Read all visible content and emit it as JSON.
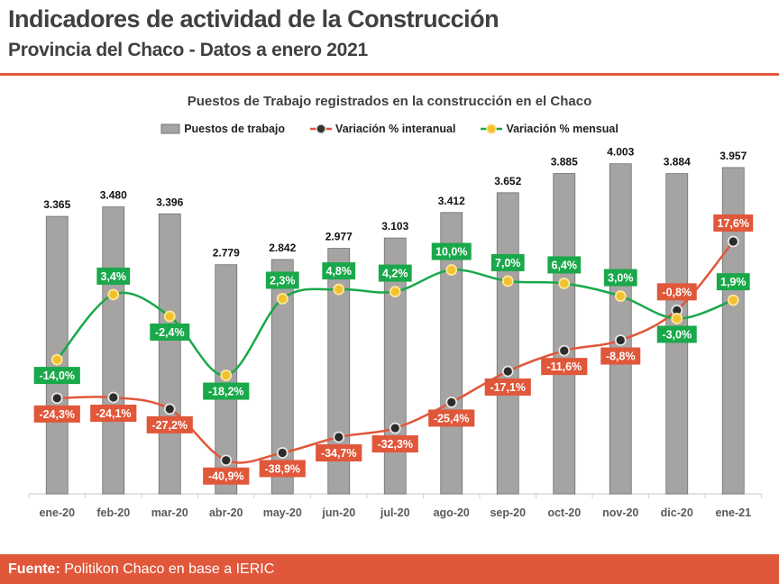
{
  "header": {
    "title": "Indicadores de actividad de la Construcción",
    "subtitle": "Provincia del Chaco - Datos a enero 2021"
  },
  "footer": {
    "label": "Fuente:",
    "text": " Politikon Chaco en base a IERIC"
  },
  "chart_data": {
    "type": "bar",
    "title": "Puestos de Trabajo registrados en la construcción en el Chaco",
    "categories": [
      "ene-20",
      "feb-20",
      "mar-20",
      "abr-20",
      "may-20",
      "jun-20",
      "jul-20",
      "ago-20",
      "sep-20",
      "oct-20",
      "nov-20",
      "dic-20",
      "ene-21"
    ],
    "legend_position": "top",
    "grid": false,
    "series": [
      {
        "name": "Puestos de trabajo",
        "type": "bar",
        "color": "#a6a3a3",
        "values": [
          3365,
          3480,
          3396,
          2779,
          2842,
          2977,
          3103,
          3412,
          3652,
          3885,
          4003,
          3884,
          3957
        ],
        "labels": [
          "3.365",
          "3.480",
          "3.396",
          "2.779",
          "2.842",
          "2.977",
          "3.103",
          "3.412",
          "3.652",
          "3.885",
          "4.003",
          "3.884",
          "3.957"
        ]
      },
      {
        "name": "Variación % interanual",
        "type": "line",
        "color": "#e0573a",
        "values": [
          -24.3,
          -24.1,
          -27.2,
          -40.9,
          -38.9,
          -34.7,
          -32.3,
          -25.4,
          -17.1,
          -11.6,
          -8.8,
          -0.8,
          17.6
        ],
        "labels": [
          "-24,3%",
          "-24,1%",
          "-27,2%",
          "-40,9%",
          "-38,9%",
          "-34,7%",
          "-32,3%",
          "-25,4%",
          "-17,1%",
          "-11,6%",
          "-8,8%",
          "-0,8%",
          "17,6%"
        ]
      },
      {
        "name": "Variación % mensual",
        "type": "line",
        "color": "#19a84a",
        "values": [
          -14.0,
          3.4,
          -2.4,
          -18.2,
          2.3,
          4.8,
          4.2,
          10.0,
          7.0,
          6.4,
          3.0,
          -3.0,
          1.9
        ],
        "labels": [
          "-14,0%",
          "3,4%",
          "-2,4%",
          "-18,2%",
          "2,3%",
          "4,8%",
          "4,2%",
          "10,0%",
          "7,0%",
          "6,4%",
          "3,0%",
          "-3,0%",
          "1,9%"
        ]
      }
    ]
  }
}
